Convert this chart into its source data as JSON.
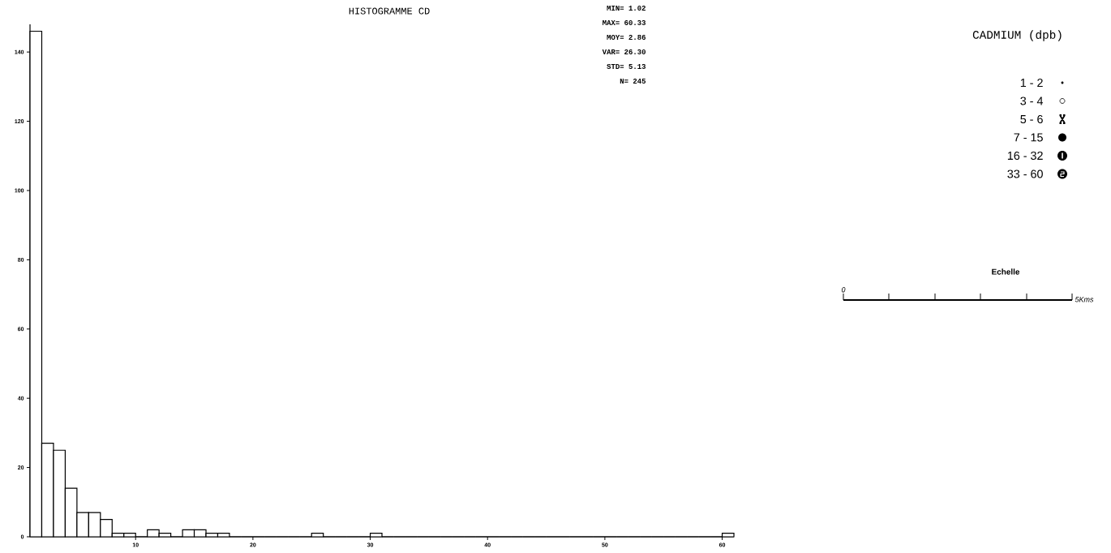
{
  "chart_data": {
    "type": "histogram",
    "title": "HISTOGRAMME CD",
    "bins": [
      1,
      2,
      3,
      4,
      5,
      6,
      7,
      8,
      9,
      10,
      11,
      12,
      13,
      14,
      15,
      16,
      17,
      18,
      19,
      20,
      21,
      22,
      23,
      24,
      25,
      26,
      27,
      28,
      29,
      30,
      31,
      32,
      33,
      34,
      35,
      36,
      37,
      38,
      39,
      40,
      41,
      42,
      43,
      44,
      45,
      46,
      47,
      48,
      49,
      50,
      51,
      52,
      53,
      54,
      55,
      56,
      57,
      58,
      59,
      60,
      61
    ],
    "values": [
      146,
      27,
      25,
      14,
      7,
      7,
      5,
      1,
      1,
      0,
      2,
      1,
      0,
      2,
      2,
      1,
      1,
      0,
      0,
      0,
      0,
      0,
      0,
      0,
      1,
      0,
      0,
      0,
      0,
      1,
      0,
      0,
      0,
      0,
      0,
      0,
      0,
      0,
      0,
      0,
      0,
      0,
      0,
      0,
      0,
      0,
      0,
      0,
      0,
      0,
      0,
      0,
      0,
      0,
      0,
      0,
      0,
      0,
      0,
      1
    ],
    "color": "#000000",
    "xlim": [
      1,
      61
    ],
    "ylim": [
      0,
      148
    ],
    "xticks": [
      10,
      20,
      30,
      40,
      50,
      60
    ],
    "yticks": [
      0,
      20,
      40,
      60,
      80,
      100,
      120,
      140
    ],
    "grid": false,
    "annotations": [
      "MIN= 1.02",
      "MAX= 60.33",
      "MOY= 2.86",
      "VAR= 26.30",
      "STD= 5.13",
      "N= 245",
      "CADMIUM (dpb)",
      "1 - 2",
      "3 - 4",
      "5 - 6",
      "7 - 15",
      "16 - 32",
      "33 - 60",
      "Echelle",
      "0",
      "5Kms"
    ]
  }
}
